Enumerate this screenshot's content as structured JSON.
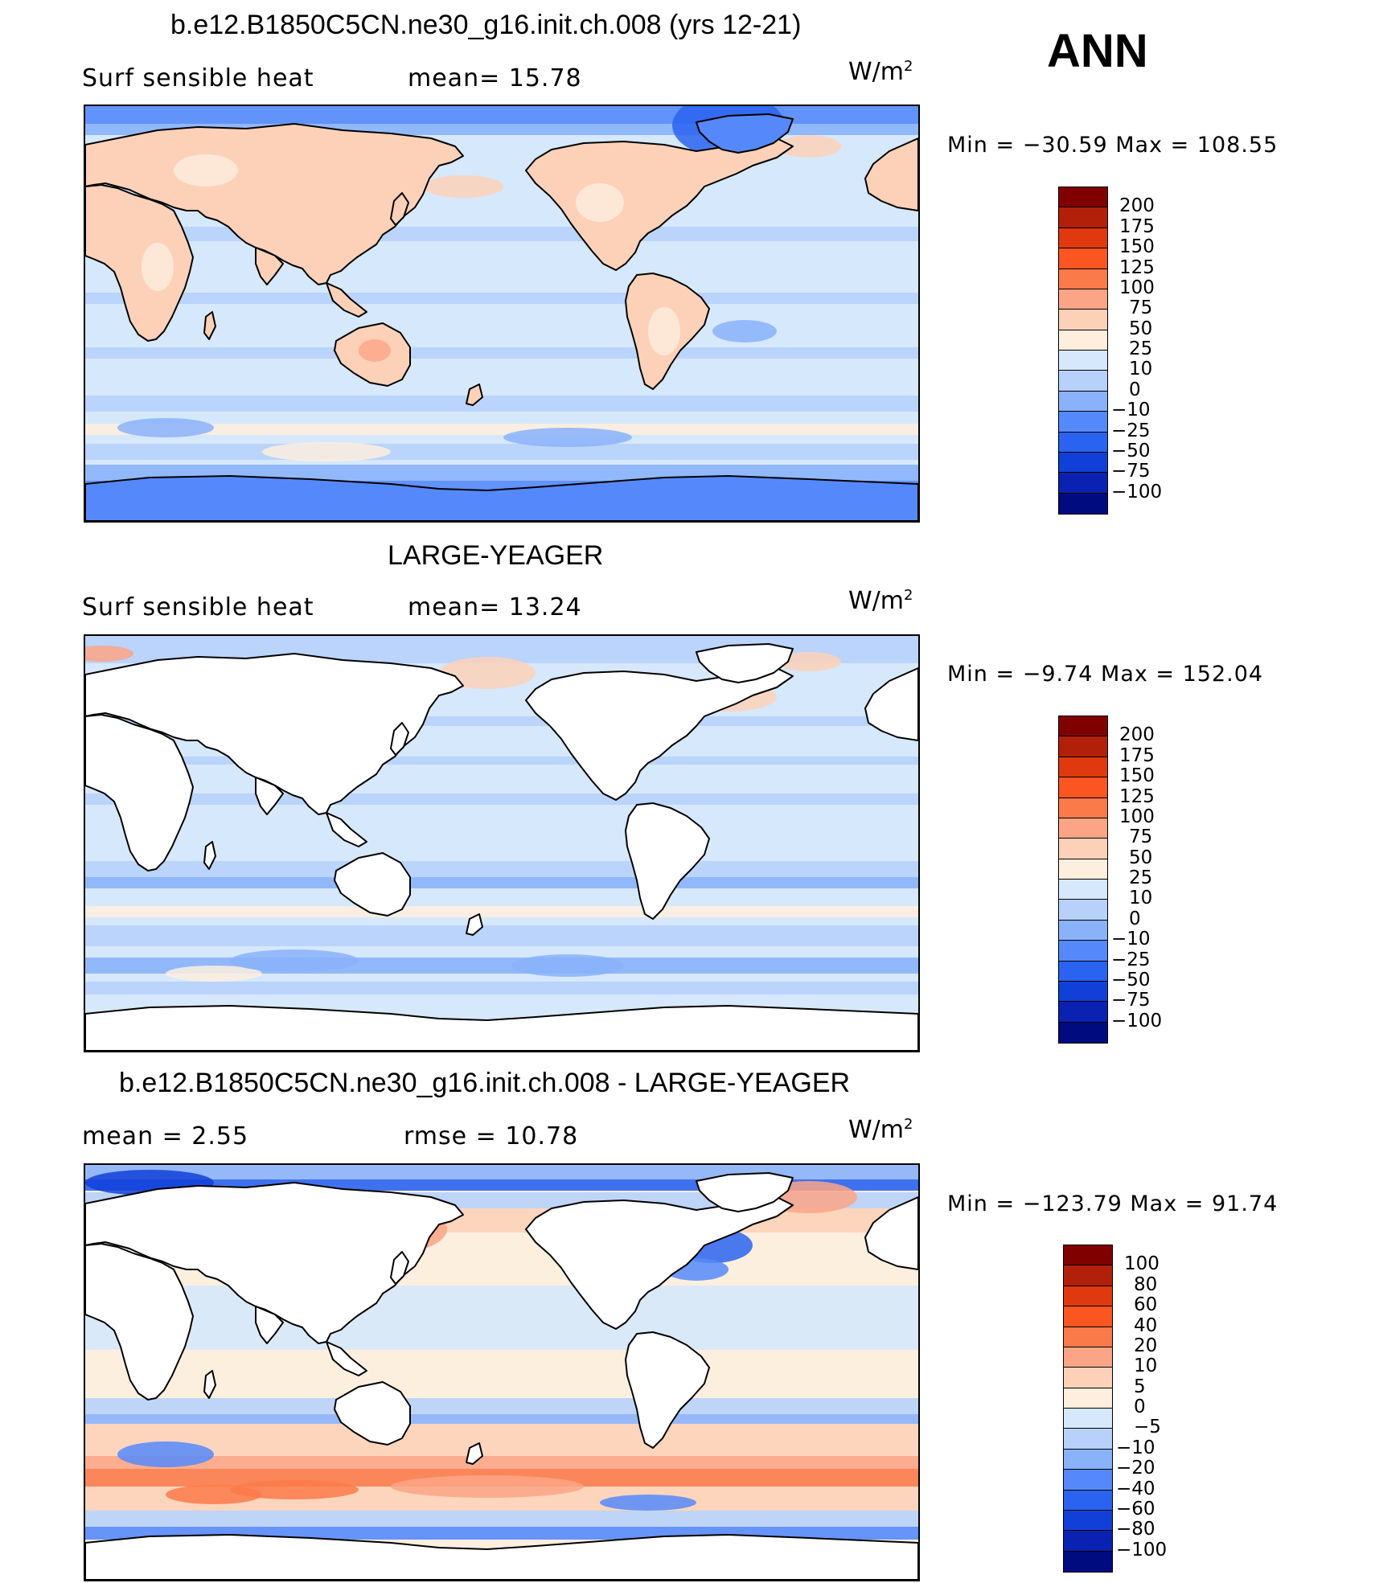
{
  "season": "ANN",
  "panels": [
    {
      "title": "b.e12.B1850C5CN.ne30_g16.init.ch.008 (yrs 12-21)",
      "left_stat": "Surf  sensible  heat",
      "right_stat": "mean=   15.78",
      "units_base": "W/m",
      "units_exp": "2",
      "minmax": "Min  =  −30.59  Max  =  108.55",
      "land_colored": true,
      "colorbar_labels": [
        "200",
        "175",
        "150",
        "125",
        "100",
        "75",
        "50",
        "25",
        "10",
        "0",
        "−10",
        "−25",
        "−50",
        "−75",
        "−100"
      ]
    },
    {
      "title": "LARGE-YEAGER",
      "left_stat": "Surf  sensible  heat",
      "right_stat": "mean=   13.24",
      "units_base": "W/m",
      "units_exp": "2",
      "minmax": "Min  =   −9.74  Max  =  152.04",
      "land_colored": false,
      "colorbar_labels": [
        "200",
        "175",
        "150",
        "125",
        "100",
        "75",
        "50",
        "25",
        "10",
        "0",
        "−10",
        "−25",
        "−50",
        "−75",
        "−100"
      ]
    },
    {
      "title": "b.e12.B1850C5CN.ne30_g16.init.ch.008 - LARGE-YEAGER",
      "left_stat": "mean  =      2.55",
      "right_stat": "rmse  =    10.78",
      "units_base": "W/m",
      "units_exp": "2",
      "minmax": "Min  =  −123.79  Max  =    91.74",
      "land_colored": false,
      "colorbar_labels": [
        "100",
        "80",
        "60",
        "40",
        "20",
        "10",
        "5",
        "0",
        "−5",
        "−10",
        "−20",
        "−40",
        "−60",
        "−80",
        "−100"
      ]
    }
  ],
  "colors": {
    "scale": [
      "#800000",
      "#b2200a",
      "#e0390f",
      "#fb5521",
      "#fb7a4a",
      "#fca586",
      "#fdd1b8",
      "#fdeede",
      "#d6e8fb",
      "#b7d1fb",
      "#8ab2fb",
      "#5589fb",
      "#2a63f0",
      "#1040d8",
      "#0a22b2",
      "#000b80"
    ],
    "diff_scale": [
      "#800000",
      "#b2200a",
      "#e0390f",
      "#fb5521",
      "#fb7a4a",
      "#fca586",
      "#fdd1b8",
      "#fdeede",
      "#d6e8fb",
      "#b7d1fb",
      "#8ab2fb",
      "#5589fb",
      "#2a63f0",
      "#1040d8",
      "#0a22b2",
      "#000b80"
    ]
  }
}
